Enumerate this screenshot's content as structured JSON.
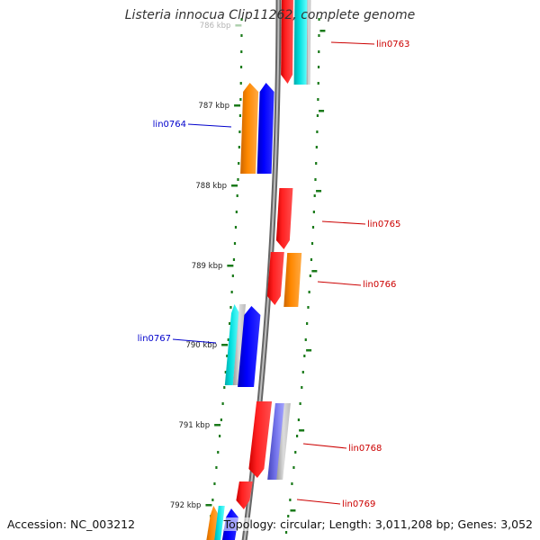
{
  "title": "Listeria innocua Clip11262, complete genome",
  "accession_text": "Accession: NC_003212",
  "topology_text": "Topology: circular; Length: 3,011,208 bp; Genes: 3,052",
  "colors": {
    "backbone": "#8a8a8a",
    "tick": "#1a7a1a",
    "forward_label": "#cc0000",
    "reverse_label": "#0000cc",
    "red": "#ff0000",
    "blue": "#0000ff",
    "orange": "#ff8800",
    "cyan": "#00cccc",
    "lightblue": "#6666dd",
    "gray": "#bbbbbb"
  },
  "ticks": [
    {
      "label": "786 kbp",
      "faded": true
    },
    {
      "label": "787 kbp"
    },
    {
      "label": "788 kbp"
    },
    {
      "label": "789 kbp"
    },
    {
      "label": "790 kbp"
    },
    {
      "label": "791 kbp"
    },
    {
      "label": "792 kbp"
    }
  ],
  "gene_labels": [
    {
      "name": "lin0763",
      "strand": "forward"
    },
    {
      "name": "lin0764",
      "strand": "reverse"
    },
    {
      "name": "lin0765",
      "strand": "forward"
    },
    {
      "name": "lin0766",
      "strand": "forward"
    },
    {
      "name": "lin0767",
      "strand": "reverse"
    },
    {
      "name": "lin0768",
      "strand": "forward"
    },
    {
      "name": "lin0769",
      "strand": "forward"
    }
  ]
}
